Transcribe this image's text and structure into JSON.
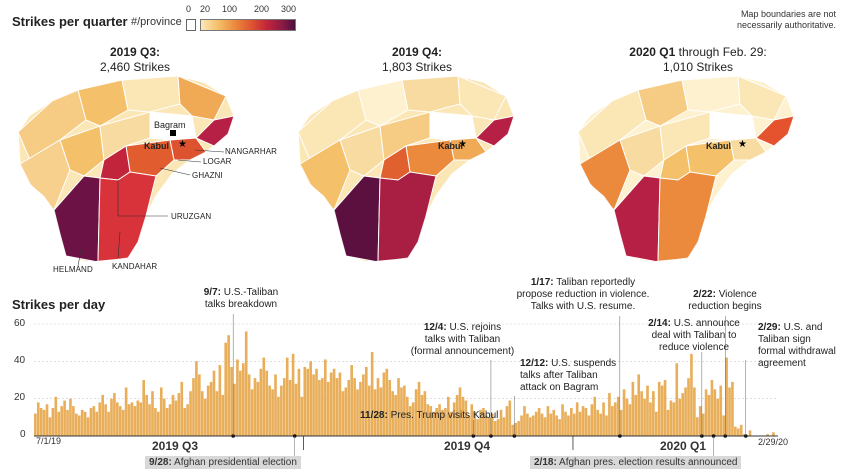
{
  "header": {
    "title": "Strikes per quarter",
    "legend_label": "#/province",
    "legend_ticks": [
      "0",
      "20",
      "100",
      "200",
      "300"
    ],
    "legend_colors": [
      "#ffffff",
      "#fbe8b8",
      "#f4c06a",
      "#eb8a3c",
      "#dd5330",
      "#c2253b",
      "#8d1b45",
      "#4e0f3e"
    ],
    "disclaimer_line1": "Map boundaries are not",
    "disclaimer_line2": "necessarily authoritative."
  },
  "maps": [
    {
      "title_bold": "2019 Q3:",
      "title_rest": "",
      "strikes": "2,460 Strikes"
    },
    {
      "title_bold": "2019 Q4:",
      "title_rest": "",
      "strikes": "1,803 Strikes"
    },
    {
      "title_bold": "2020 Q1",
      "title_rest": "through Feb. 29:",
      "strikes": "1,010 Strikes"
    }
  ],
  "map_labels": {
    "bagram": "Bagram",
    "kabul": "Kabul",
    "nangarhar": "NANGARHAR",
    "logar": "LOGAR",
    "ghazni": "GHAZNI",
    "uruzgan": "URUZGAN",
    "helmand": "HELMAND",
    "kandahar": "KANDAHAR"
  },
  "chart_data": {
    "type": "bar",
    "title": "Strikes per day",
    "ylim": [
      0,
      60
    ],
    "y_ticks": [
      0,
      20,
      40,
      60
    ],
    "x_start_label": "7/1/19",
    "x_end_label": "2/29/20",
    "quarters": [
      "2019 Q3",
      "2019 Q4",
      "2020 Q1"
    ],
    "bar_color": "#e8ae5a",
    "values": [
      12,
      18,
      15,
      14,
      17,
      10,
      15,
      21,
      13,
      16,
      19,
      14,
      20,
      16,
      12,
      11,
      14,
      13,
      10,
      15,
      16,
      13,
      18,
      22,
      17,
      13,
      20,
      23,
      18,
      16,
      14,
      26,
      17,
      18,
      16,
      19,
      18,
      30,
      22,
      17,
      24,
      15,
      13,
      26,
      20,
      15,
      17,
      22,
      19,
      23,
      29,
      15,
      17,
      24,
      31,
      40,
      33,
      24,
      20,
      27,
      29,
      35,
      24,
      38,
      22,
      50,
      54,
      37,
      28,
      41,
      35,
      39,
      56,
      33,
      25,
      31,
      29,
      36,
      42,
      35,
      27,
      25,
      33,
      21,
      27,
      31,
      42,
      30,
      44,
      28,
      36,
      21,
      37,
      36,
      40,
      33,
      36,
      30,
      31,
      41,
      29,
      34,
      36,
      31,
      34,
      24,
      26,
      30,
      38,
      31,
      25,
      29,
      33,
      37,
      27,
      45,
      25,
      31,
      26,
      34,
      36,
      30,
      24,
      22,
      31,
      26,
      27,
      21,
      16,
      18,
      25,
      29,
      22,
      24,
      17,
      16,
      13,
      15,
      17,
      14,
      15,
      21,
      13,
      18,
      22,
      26,
      21,
      19,
      11,
      17,
      13,
      9,
      14,
      15,
      11,
      10,
      12,
      8,
      9,
      14,
      10,
      16,
      19,
      6,
      7,
      8,
      11,
      16,
      12,
      10,
      11,
      13,
      15,
      12,
      10,
      16,
      12,
      14,
      11,
      9,
      17,
      13,
      11,
      15,
      12,
      18,
      13,
      16,
      15,
      11,
      17,
      21,
      14,
      12,
      18,
      11,
      23,
      16,
      18,
      21,
      14,
      25,
      20,
      17,
      29,
      22,
      33,
      24,
      20,
      27,
      18,
      24,
      13,
      29,
      27,
      30,
      14,
      19,
      18,
      39,
      20,
      23,
      26,
      31,
      44,
      26,
      10,
      16,
      12,
      25,
      22,
      30,
      25,
      20,
      27,
      11,
      42,
      26,
      29,
      5,
      4,
      6,
      1,
      0,
      3,
      0,
      0,
      0,
      0,
      0,
      1,
      0,
      2,
      0
    ],
    "events_above": [
      {
        "date": "9/7:",
        "text1": "U.S.-Taliban",
        "text2": "talks breakdown",
        "day": 68
      },
      {
        "date": "1/17:",
        "text1": "Taliban reportedly",
        "text2": "propose reduction in violence.",
        "text3": "Talks with U.S. resume.",
        "day": 200
      },
      {
        "date": "2/22:",
        "text1": "Violence",
        "text2": "reduction begins",
        "day": 236
      },
      {
        "date": "12/4:",
        "text1": "U.S. rejoins",
        "text2": "talks with Taliban",
        "text3": "(formal announcement)",
        "day": 156
      },
      {
        "date": "2/14:",
        "text1": "U.S. announce",
        "text2": "deal with Taliban to",
        "text3": "reduce violence",
        "day": 228
      },
      {
        "date": "2/29:",
        "text1": "U.S. and",
        "text2": "Taliban sign",
        "text3": "formal withdrawal",
        "text4": "agreement",
        "day": 243
      },
      {
        "date": "12/12:",
        "text1": "U.S. suspends",
        "text2": "talks after Taliban",
        "text3": "attack on Bagram",
        "day": 164
      },
      {
        "date": "11/28:",
        "text1": "Pres. Trump visits Kabul",
        "day": 150
      }
    ],
    "events_below": [
      {
        "date": "9/28:",
        "text1": "Afghan presidential election",
        "day": 89
      },
      {
        "date": "2/18:",
        "text1": "Afghan pres. election results announced",
        "day": 232
      }
    ]
  }
}
